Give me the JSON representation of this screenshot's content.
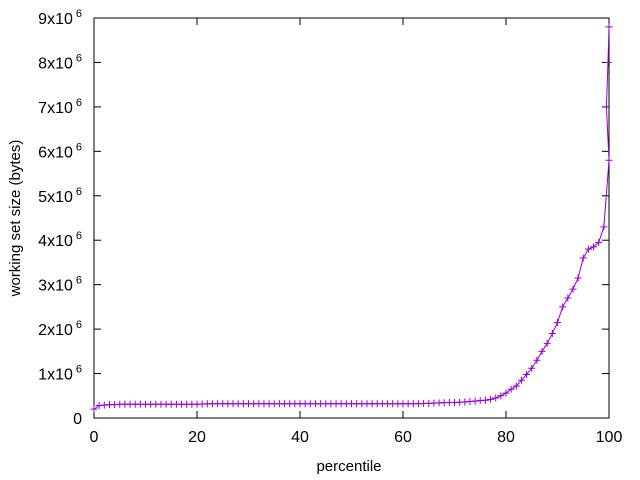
{
  "chart_data": {
    "type": "line",
    "xlabel": "percentile",
    "ylabel": "working set size (bytes)",
    "xlim": [
      0,
      100
    ],
    "ylim": [
      0,
      9000000
    ],
    "grid": false,
    "x_ticks": [
      {
        "value": 0,
        "label": "0"
      },
      {
        "value": 20,
        "label": "20"
      },
      {
        "value": 40,
        "label": "40"
      },
      {
        "value": 60,
        "label": "60"
      },
      {
        "value": 80,
        "label": "80"
      },
      {
        "value": 100,
        "label": "100"
      }
    ],
    "y_ticks": [
      {
        "value": 0,
        "label": "0",
        "exp": ""
      },
      {
        "value": 1000000,
        "label": "1x10",
        "exp": "6"
      },
      {
        "value": 2000000,
        "label": "2x10",
        "exp": "6"
      },
      {
        "value": 3000000,
        "label": "3x10",
        "exp": "6"
      },
      {
        "value": 4000000,
        "label": "4x10",
        "exp": "6"
      },
      {
        "value": 5000000,
        "label": "5x10",
        "exp": "6"
      },
      {
        "value": 6000000,
        "label": "6x10",
        "exp": "6"
      },
      {
        "value": 7000000,
        "label": "7x10",
        "exp": "6"
      },
      {
        "value": 8000000,
        "label": "8x10",
        "exp": "6"
      },
      {
        "value": 9000000,
        "label": "9x10",
        "exp": "6"
      }
    ],
    "colors": {
      "series": "#9400d3",
      "axis": "#000000"
    },
    "series": [
      {
        "marker": "plus",
        "x": [
          0,
          1,
          2,
          3,
          4,
          5,
          6,
          7,
          8,
          9,
          10,
          11,
          12,
          13,
          14,
          15,
          16,
          17,
          18,
          19,
          20,
          21,
          22,
          23,
          24,
          25,
          26,
          27,
          28,
          29,
          30,
          31,
          32,
          33,
          34,
          35,
          36,
          37,
          38,
          39,
          40,
          41,
          42,
          43,
          44,
          45,
          46,
          47,
          48,
          49,
          50,
          51,
          52,
          53,
          54,
          55,
          56,
          57,
          58,
          59,
          60,
          61,
          62,
          63,
          64,
          65,
          66,
          67,
          68,
          69,
          70,
          71,
          72,
          73,
          74,
          75,
          76,
          77,
          78,
          79,
          80,
          81,
          82,
          83,
          84,
          85,
          86,
          87,
          88,
          89,
          90,
          91,
          92,
          93,
          94,
          95,
          96,
          97,
          98,
          99,
          100
        ],
        "y": [
          200000,
          280000,
          290000,
          300000,
          300000,
          310000,
          310000,
          310000,
          310000,
          310000,
          310000,
          310000,
          310000,
          310000,
          310000,
          310000,
          310000,
          310000,
          310000,
          310000,
          310000,
          315000,
          320000,
          320000,
          320000,
          320000,
          320000,
          320000,
          320000,
          320000,
          320000,
          320000,
          320000,
          320000,
          320000,
          320000,
          320000,
          320000,
          320000,
          320000,
          320000,
          320000,
          320000,
          320000,
          320000,
          320000,
          320000,
          320000,
          320000,
          320000,
          320000,
          320000,
          320000,
          320000,
          320000,
          320000,
          320000,
          320000,
          320000,
          320000,
          320000,
          320000,
          320000,
          320000,
          325000,
          330000,
          335000,
          340000,
          345000,
          350000,
          350000,
          355000,
          360000,
          370000,
          380000,
          390000,
          400000,
          420000,
          450000,
          500000,
          560000,
          650000,
          720000,
          850000,
          980000,
          1120000,
          1300000,
          1500000,
          1680000,
          1900000,
          2150000,
          2500000,
          2700000,
          2900000,
          3150000,
          3600000,
          3800000,
          3850000,
          3950000,
          4300000,
          5800000
        ],
        "end_points": [
          {
            "x": 99.5,
            "y": 7000000
          },
          {
            "x": 99.8,
            "y": 8000000
          },
          {
            "x": 100,
            "y": 8800000
          }
        ]
      }
    ]
  }
}
